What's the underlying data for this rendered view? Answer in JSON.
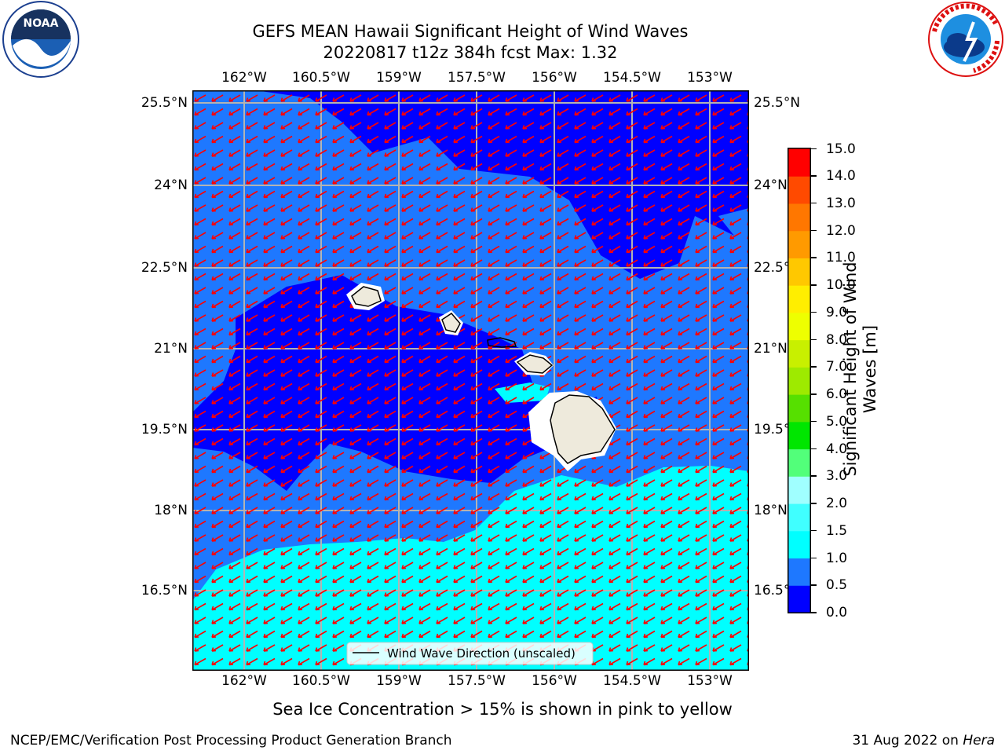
{
  "header": {
    "title_line1": "GEFS MEAN Hawaii Significant Height of Wind Waves",
    "title_line2": "20220817 t12z 384h fcst   Max: 1.32"
  },
  "logos": {
    "left": "noaa-logo",
    "left_text": "NOAA",
    "left_ring_text": "NATIONAL OCEANIC AND ATMOSPHERIC ADMINISTRATION · U.S. DEPARTMENT OF COMMERCE",
    "right": "nws-logo",
    "right_ring_text": "NATIONAL WEATHER SERVICE"
  },
  "map": {
    "lon_labels": [
      "162°W",
      "160.5°W",
      "159°W",
      "157.5°W",
      "156°W",
      "154.5°W",
      "153°W"
    ],
    "lat_labels": [
      "25.5°N",
      "24°N",
      "22.5°N",
      "21°N",
      "19.5°N",
      "18°N",
      "16.5°N"
    ],
    "right_lat_labels": [
      "25.5°N",
      "24°N",
      "22.5°N",
      "21°N",
      "19.5°N",
      "18°N",
      "16.5°N"
    ],
    "legend_label": "Wind Wave Direction (unscaled)",
    "arrow_color": "#ff0000",
    "land_color": "#eeeadc",
    "wave_direction": "toward southwest"
  },
  "colorbar": {
    "label_line1": "Significant Height of Wind",
    "label_line2": "Waves [m]",
    "ticks": [
      "0.0",
      "0.5",
      "1.0",
      "1.5",
      "2.0",
      "3.0",
      "4.0",
      "5.0",
      "6.0",
      "7.0",
      "8.0",
      "9.0",
      "10.0",
      "11.0",
      "12.0",
      "13.0",
      "14.0",
      "15.0"
    ],
    "colors": [
      "#0000ff",
      "#1e78ff",
      "#00ffff",
      "#40ffff",
      "#a0ffff",
      "#52ff7a",
      "#00e600",
      "#56e000",
      "#9eea00",
      "#c8f000",
      "#eeff00",
      "#ffee00",
      "#ffc800",
      "#ff9a00",
      "#ff7700",
      "#ff4a00",
      "#ff0000"
    ]
  },
  "footer": {
    "sea_ice_note": "Sea Ice Concentration > 15% is shown in pink to yellow",
    "branch": "NCEP/EMC/Verification Post Processing Product Generation Branch",
    "date": "31 Aug 2022 on ",
    "machine": "Hera"
  },
  "chart_data": {
    "type": "heatmap",
    "title": "GEFS MEAN Hawaii Significant Height of Wind Waves",
    "subtitle": "20220817 t12z 384h fcst   Max: 1.32",
    "x_ticks": [
      "162°W",
      "160.5°W",
      "159°W",
      "157.5°W",
      "156°W",
      "154.5°W",
      "153°W"
    ],
    "y_ticks": [
      "25.5°N",
      "24°N",
      "22.5°N",
      "21°N",
      "19.5°N",
      "18°N",
      "16.5°N"
    ],
    "xlim": [
      -163.0,
      -152.3
    ],
    "ylim": [
      15.4,
      25.8
    ],
    "grid": true,
    "max_value": 1.32,
    "colorbar_range": [
      0.0,
      15.0
    ],
    "colorbar_label": "Significant Height of Wind Waves [m]",
    "regions": [
      {
        "band": "0.0–0.5",
        "description": "blue"
      },
      {
        "band": "0.5–1.0",
        "description": "medium blue"
      },
      {
        "band": "1.0–1.5",
        "description": "cyan"
      }
    ],
    "legend": [
      "Wind Wave Direction (unscaled)"
    ],
    "legend_position": "bottom-center"
  }
}
